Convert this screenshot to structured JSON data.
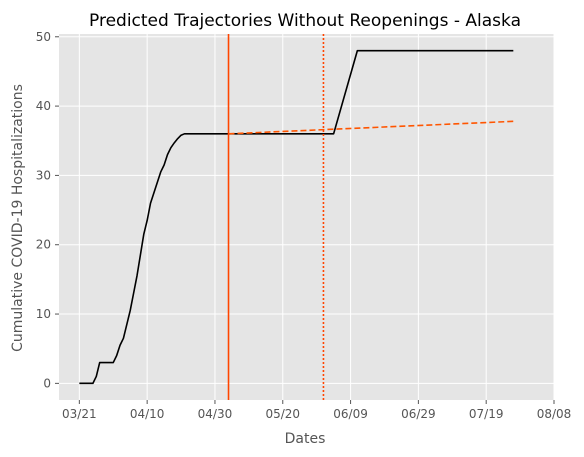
{
  "chart_data": {
    "type": "line",
    "title": "Predicted Trajectories Without Reopenings - Alaska",
    "xlabel": "Dates",
    "ylabel": "Cumulative COVID-19 Hospitalizations",
    "x_ticks": [
      "03/21",
      "04/10",
      "04/30",
      "05/20",
      "06/09",
      "06/29",
      "07/19",
      "08/08"
    ],
    "xlim": [
      "03/15",
      "08/08"
    ],
    "ylim": [
      -2.4,
      50.4
    ],
    "y_ticks": [
      0,
      10,
      20,
      30,
      40,
      50
    ],
    "grid": true,
    "background": "#e5e5e5",
    "series": [
      {
        "style": "solid",
        "color": "#000000",
        "x": [
          "03/21",
          "03/22",
          "03/23",
          "03/24",
          "03/25",
          "03/26",
          "03/27",
          "03/28",
          "03/29",
          "03/30",
          "03/31",
          "04/01",
          "04/02",
          "04/03",
          "04/04",
          "04/05",
          "04/06",
          "04/07",
          "04/08",
          "04/09",
          "04/10",
          "04/11",
          "04/12",
          "04/13",
          "04/14",
          "04/15",
          "04/16",
          "04/17",
          "04/18",
          "04/19",
          "04/20",
          "04/21",
          "04/22",
          "04/23",
          "04/24",
          "04/25",
          "04/26",
          "05/04",
          "06/04",
          "06/11",
          "07/27"
        ],
        "y": [
          0,
          0,
          0,
          0,
          0,
          1,
          3,
          3,
          3,
          3,
          3,
          4,
          5.5,
          6.5,
          8.5,
          10.5,
          13,
          15.5,
          18.5,
          21.5,
          23.5,
          26,
          27.5,
          29,
          30.5,
          31.5,
          33,
          34,
          34.7,
          35.3,
          35.8,
          36,
          36,
          36,
          36,
          36,
          36,
          36,
          36,
          48,
          48
        ]
      },
      {
        "style": "dashed",
        "color": "#ff5500",
        "x": [
          "05/04",
          "07/27"
        ],
        "y": [
          36,
          37.8
        ]
      }
    ],
    "vlines": [
      {
        "x": "05/04",
        "style": "solid",
        "color": "#ff4500"
      },
      {
        "x": "06/01",
        "style": "dotted",
        "color": "#ff4500"
      }
    ]
  }
}
